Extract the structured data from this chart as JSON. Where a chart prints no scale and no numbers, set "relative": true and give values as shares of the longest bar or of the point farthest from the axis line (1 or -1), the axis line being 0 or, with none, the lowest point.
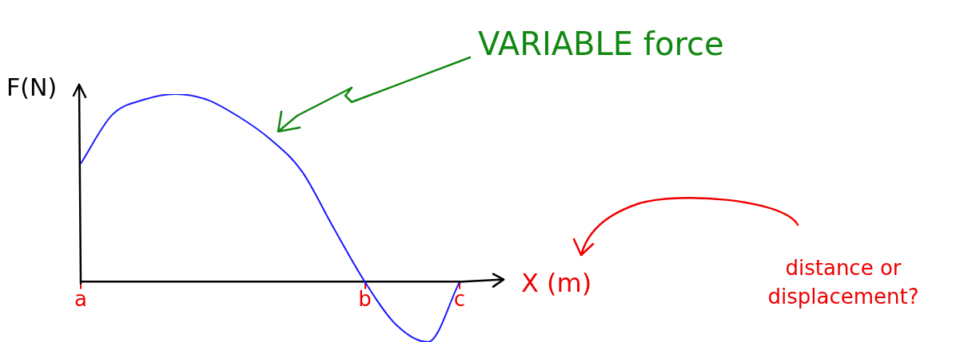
{
  "chart_data": {
    "type": "line",
    "relative": true,
    "xlabel": "X (m)",
    "ylabel": "F(N)",
    "categories": [
      "a",
      null,
      null,
      null,
      null,
      null,
      null,
      null,
      null,
      "b",
      null,
      null,
      "c"
    ],
    "series": [
      {
        "color": "#1a1aff",
        "values": [
          0.63,
          0.89,
          0.97,
          1,
          0.97,
          0.88,
          0.76,
          0.59,
          0.29,
          0,
          -0.23,
          -0.32,
          0
        ]
      }
    ],
    "annotations": [
      "VARIABLE force",
      "distance or displacement?"
    ],
    "marker": "none"
  }
}
